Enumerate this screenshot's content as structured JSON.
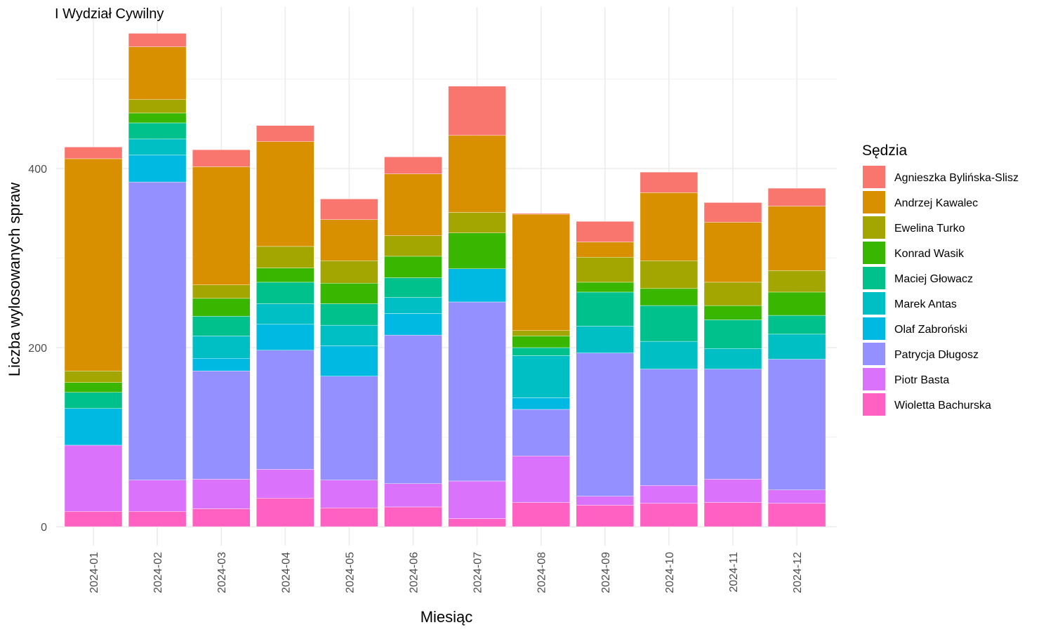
{
  "chart_data": {
    "type": "bar",
    "stacked": true,
    "title": "I Wydział Cywilny",
    "xlabel": "Miesiąc",
    "ylabel": "Liczba wylosowanych spraw",
    "ylim": [
      0,
      560
    ],
    "y_ticks": [
      0,
      200,
      400
    ],
    "grid": true,
    "legend_position": "right",
    "legend_title": "Sędzia",
    "categories": [
      "2024-01",
      "2024-02",
      "2024-03",
      "2024-04",
      "2024-05",
      "2024-06",
      "2024-07",
      "2024-08",
      "2024-09",
      "2024-10",
      "2024-11",
      "2024-12"
    ],
    "series": [
      {
        "name": "Wioletta Bachurska",
        "color": "#FF61C3",
        "values": [
          17,
          17,
          20,
          32,
          21,
          22,
          9,
          27,
          24,
          26,
          27,
          26
        ]
      },
      {
        "name": "Piotr Basta",
        "color": "#DB72FB",
        "values": [
          74,
          35,
          33,
          32,
          31,
          26,
          42,
          52,
          10,
          20,
          26,
          15
        ]
      },
      {
        "name": "Patrycja Długosz",
        "color": "#9590FF",
        "values": [
          0,
          333,
          121,
          133,
          116,
          166,
          200,
          52,
          160,
          130,
          123,
          146
        ]
      },
      {
        "name": "Olaf Zabroński",
        "color": "#00B9E3",
        "values": [
          41,
          30,
          14,
          29,
          34,
          24,
          37,
          13,
          0,
          0,
          0,
          0
        ]
      },
      {
        "name": "Marek Antas",
        "color": "#00BFC4",
        "values": [
          0,
          18,
          25,
          23,
          23,
          18,
          0,
          47,
          30,
          31,
          23,
          28
        ]
      },
      {
        "name": "Maciej Głowacz",
        "color": "#00C08B",
        "values": [
          18,
          18,
          22,
          24,
          24,
          22,
          0,
          9,
          38,
          40,
          32,
          21
        ]
      },
      {
        "name": "Konrad Wasik",
        "color": "#39B600",
        "values": [
          11,
          11,
          20,
          16,
          23,
          24,
          40,
          13,
          11,
          19,
          16,
          26
        ]
      },
      {
        "name": "Ewelina Turko",
        "color": "#A3A500",
        "values": [
          13,
          15,
          15,
          24,
          25,
          23,
          23,
          6,
          28,
          31,
          26,
          24
        ]
      },
      {
        "name": "Andrzej Kawalec",
        "color": "#D89000",
        "values": [
          237,
          59,
          132,
          117,
          46,
          69,
          86,
          130,
          17,
          76,
          67,
          72
        ]
      },
      {
        "name": "Agnieszka Bylińska-Slisz",
        "color": "#F8766D",
        "values": [
          13,
          15,
          19,
          18,
          23,
          19,
          55,
          1,
          23,
          23,
          22,
          20
        ]
      }
    ]
  }
}
